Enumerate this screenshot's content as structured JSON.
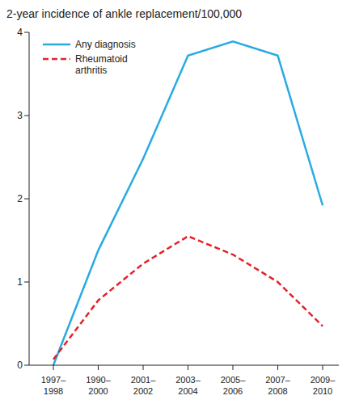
{
  "chart_data": {
    "type": "line",
    "title": "2-year incidence of ankle replacement/100,000",
    "categories": [
      "1997–1998",
      "1990–2000",
      "2001–2002",
      "2003–2004",
      "2005–2006",
      "2007–2008",
      "2009–2010"
    ],
    "series": [
      {
        "name": "Any diagnosis",
        "color": "#29abe2",
        "line_style": "solid",
        "marker": "none",
        "values": [
          0.0,
          1.38,
          2.48,
          3.72,
          3.89,
          3.72,
          1.92
        ]
      },
      {
        "name": "Rheumatoid arthritis",
        "color": "#e8202a",
        "line_style": "dashed",
        "marker": "none",
        "values": [
          0.07,
          0.78,
          1.22,
          1.55,
          1.33,
          1.0,
          0.47
        ]
      }
    ],
    "ylim": [
      0,
      4
    ],
    "yticks": [
      0,
      1,
      2,
      3,
      4
    ],
    "grid": false,
    "legend": "upper left"
  }
}
